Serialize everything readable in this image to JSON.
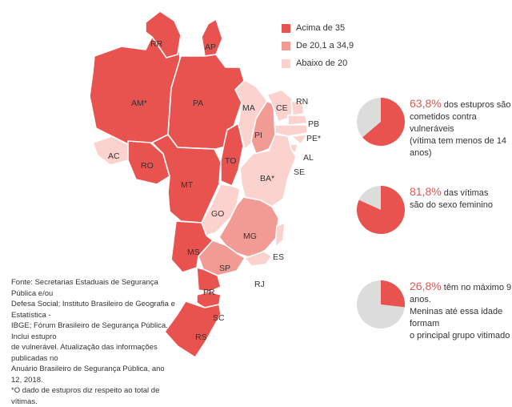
{
  "colors": {
    "high": "#e8534f",
    "mid": "#f29a94",
    "low": "#fbd2cd",
    "pie_rest": "#dcdcdc"
  },
  "legend": [
    {
      "label": "Acima de 35",
      "color": "#e8534f"
    },
    {
      "label": "De 20,1 a 34,9",
      "color": "#f29a94"
    },
    {
      "label": "Abaixo de 20",
      "color": "#fbd2cd"
    }
  ],
  "states": [
    {
      "code": "RR",
      "level": "high"
    },
    {
      "code": "AP",
      "level": "high"
    },
    {
      "code": "AM*",
      "level": "high"
    },
    {
      "code": "PA",
      "level": "high"
    },
    {
      "code": "AC",
      "level": "low"
    },
    {
      "code": "RO",
      "level": "high"
    },
    {
      "code": "MT",
      "level": "high"
    },
    {
      "code": "TO",
      "level": "high"
    },
    {
      "code": "MA",
      "level": "low"
    },
    {
      "code": "PI",
      "level": "mid"
    },
    {
      "code": "CE",
      "level": "low"
    },
    {
      "code": "RN",
      "level": "low"
    },
    {
      "code": "PB",
      "level": "low"
    },
    {
      "code": "PE*",
      "level": "low"
    },
    {
      "code": "AL",
      "level": "low"
    },
    {
      "code": "SE",
      "level": "low"
    },
    {
      "code": "BA*",
      "level": "low"
    },
    {
      "code": "GO",
      "level": "low"
    },
    {
      "code": "MG",
      "level": "mid"
    },
    {
      "code": "ES",
      "level": "low"
    },
    {
      "code": "RJ",
      "level": "low"
    },
    {
      "code": "SP",
      "level": "mid"
    },
    {
      "code": "MS",
      "level": "high"
    },
    {
      "code": "PR",
      "level": "high"
    },
    {
      "code": "SC",
      "level": "high"
    },
    {
      "code": "RS",
      "level": "high"
    }
  ],
  "stats": [
    {
      "value": 63.8,
      "pct_text": "63,8%",
      "line1_rest": " dos estupros são",
      "line2": "cometidos contra vulneráveis",
      "line3": "(vítima tem menos de 14 anos)"
    },
    {
      "value": 81.8,
      "pct_text": "81,8%",
      "line1_rest": " das vítimas",
      "line2": "são do sexo feminino",
      "line3": ""
    },
    {
      "value": 26.8,
      "pct_text": "26,8%",
      "line1_rest": " têm no máximo 9 anos.",
      "line2": "Meninas até essa idade formam",
      "line3": "o principal grupo vitimado"
    }
  ],
  "source": {
    "line1": "Fonte: Secretarias Estaduais de Segurança Pública e/ou",
    "line2": "Defesa Social; Instituto Brasileiro de Geografia e Estatística -",
    "line3": "IBGE; Fórum Brasileiro de Segurança Pública. Inclui estupro",
    "line4": "de vulnerável. Atualização das informações publicadas no",
    "line5": "Anuário Brasileiro de Segurança Pública, ano 12, 2018.",
    "line6": "*O dado de estupros diz respeito ao total de vítimas."
  }
}
